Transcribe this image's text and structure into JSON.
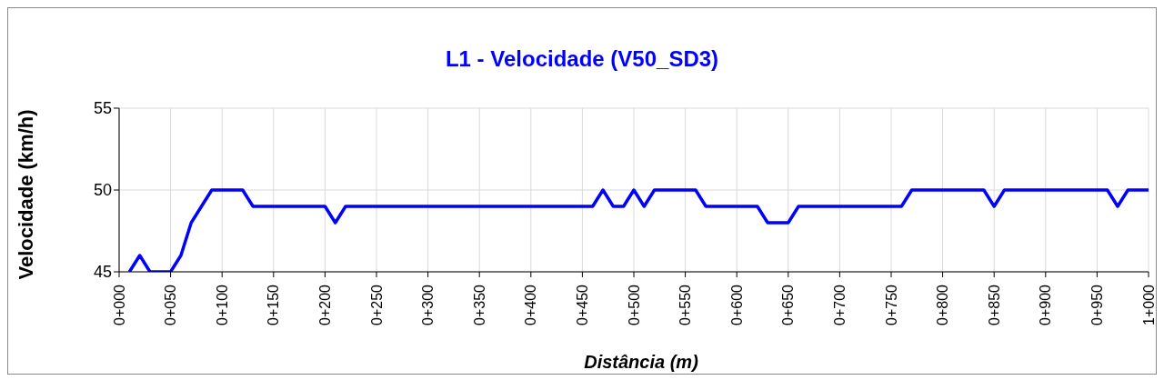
{
  "chart_data": {
    "type": "line",
    "title": "L1 - Velocidade (V50_SD3)",
    "xlabel": "Distância (m)",
    "ylabel": "Velocidade (km/h)",
    "categories": [
      "0+000",
      null,
      null,
      null,
      null,
      "0+050",
      null,
      null,
      null,
      null,
      "0+100",
      null,
      null,
      null,
      null,
      "0+150",
      null,
      null,
      null,
      null,
      "0+200",
      null,
      null,
      null,
      null,
      "0+250",
      null,
      null,
      null,
      null,
      "0+300",
      null,
      null,
      null,
      null,
      "0+350",
      null,
      null,
      null,
      null,
      "0+400",
      null,
      null,
      null,
      null,
      "0+450",
      null,
      null,
      null,
      null,
      "0+500",
      null,
      null,
      null,
      null,
      "0+550",
      null,
      null,
      null,
      null,
      "0+600",
      null,
      null,
      null,
      null,
      "0+650",
      null,
      null,
      null,
      null,
      "0+700",
      null,
      null,
      null,
      null,
      "0+750",
      null,
      null,
      null,
      null,
      "0+800",
      null,
      null,
      null,
      null,
      "0+850",
      null,
      null,
      null,
      null,
      "0+900",
      null,
      null,
      null,
      null,
      "0+950",
      null,
      null,
      null,
      null,
      "1+000"
    ],
    "series": [
      {
        "color": "#0000ff",
        "values": [
          null,
          45,
          46,
          45,
          45,
          45,
          46,
          48,
          49,
          50,
          50,
          50,
          50,
          49,
          49,
          49,
          49,
          49,
          49,
          49,
          49,
          48,
          49,
          49,
          49,
          49,
          49,
          49,
          49,
          49,
          49,
          49,
          49,
          49,
          49,
          49,
          49,
          49,
          49,
          49,
          49,
          49,
          49,
          49,
          49,
          49,
          49,
          50,
          49,
          49,
          50,
          49,
          50,
          50,
          50,
          50,
          50,
          49,
          49,
          49,
          49,
          49,
          49,
          48,
          48,
          48,
          49,
          49,
          49,
          49,
          49,
          49,
          49,
          49,
          49,
          49,
          49,
          50,
          50,
          50,
          50,
          50,
          50,
          50,
          50,
          49,
          50,
          50,
          50,
          50,
          50,
          50,
          50,
          50,
          50,
          50,
          50,
          49,
          50,
          50,
          50
        ]
      }
    ],
    "ylim": [
      45,
      55
    ],
    "yticks": [
      45,
      50,
      55
    ],
    "grid": true,
    "legend": false,
    "marker": "none",
    "line_style": "solid"
  }
}
